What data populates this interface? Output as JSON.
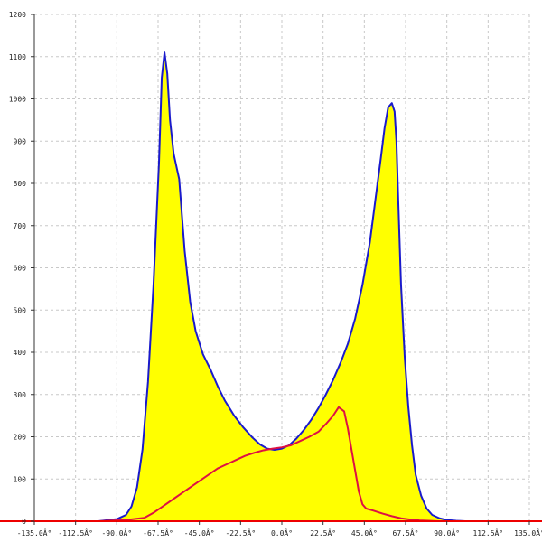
{
  "chart_data": {
    "type": "area",
    "title": "",
    "xlabel": "",
    "ylabel": "",
    "xlim": [
      -135,
      135
    ],
    "ylim": [
      0,
      1200
    ],
    "x_ticks": [
      -135,
      -112.5,
      -90,
      -67.5,
      -45,
      -22.5,
      0,
      22.5,
      45,
      67.5,
      90,
      112.5,
      135
    ],
    "x_tick_labels": [
      "-135.0Â°",
      "-112.5Â°",
      "-90.0Â°",
      "-67.5Â°",
      "-45.0Â°",
      "-22.5Â°",
      "0.0Â°",
      "22.5Â°",
      "45.0Â°",
      "67.5Â°",
      "90.0Â°",
      "112.5Â°",
      "135.0Â°"
    ],
    "y_ticks": [
      0,
      100,
      200,
      300,
      400,
      500,
      600,
      700,
      800,
      900,
      1000,
      1100,
      1200
    ],
    "y_tick_labels": [
      "0",
      "100",
      "200",
      "300",
      "400",
      "500",
      "600",
      "700",
      "800",
      "900",
      "1000",
      "1100",
      "1200"
    ],
    "grid": true,
    "series": [
      {
        "color": "#1a1acc",
        "fill": "#ffff00",
        "x": [
          -100,
          -90,
          -85,
          -82,
          -79,
          -76,
          -73,
          -70,
          -67,
          -65.5,
          -64,
          -62.5,
          -61,
          -59,
          -56,
          -53,
          -50,
          -47,
          -43,
          -39,
          -35,
          -31,
          -26,
          -21,
          -16,
          -12,
          -8,
          -4,
          0,
          4,
          8,
          12,
          16,
          20,
          24,
          28,
          32,
          36,
          40,
          44,
          48,
          51,
          54,
          56,
          58,
          60,
          61.5,
          62.5,
          63.5,
          65,
          67,
          69,
          71,
          73,
          76,
          79,
          82,
          86,
          90,
          95,
          100
        ],
        "y": [
          0,
          5,
          15,
          35,
          80,
          170,
          330,
          560,
          850,
          1050,
          1110,
          1060,
          950,
          870,
          810,
          640,
          520,
          450,
          395,
          360,
          320,
          285,
          250,
          222,
          198,
          182,
          172,
          169,
          172,
          180,
          196,
          216,
          240,
          268,
          300,
          335,
          375,
          420,
          480,
          560,
          660,
          760,
          860,
          930,
          980,
          990,
          970,
          900,
          760,
          560,
          390,
          270,
          180,
          110,
          60,
          30,
          15,
          7,
          3,
          1,
          0
        ]
      },
      {
        "color": "#dd1144",
        "x": [
          -100,
          -85,
          -75,
          -70,
          -65,
          -60,
          -55,
          -50,
          -45,
          -40,
          -35,
          -30,
          -25,
          -20,
          -15,
          -10,
          -5,
          0,
          5,
          10,
          15,
          20,
          24,
          28,
          31,
          34,
          36,
          38,
          40,
          42,
          44,
          46,
          50,
          55,
          60,
          65,
          70,
          75,
          80,
          85,
          90,
          100
        ],
        "y": [
          0,
          3,
          8,
          20,
          35,
          50,
          65,
          80,
          95,
          110,
          125,
          135,
          145,
          155,
          162,
          168,
          172,
          175,
          180,
          190,
          200,
          212,
          230,
          250,
          270,
          260,
          220,
          170,
          120,
          70,
          40,
          30,
          25,
          18,
          12,
          7,
          4,
          2,
          1,
          0,
          0,
          0
        ]
      }
    ]
  }
}
